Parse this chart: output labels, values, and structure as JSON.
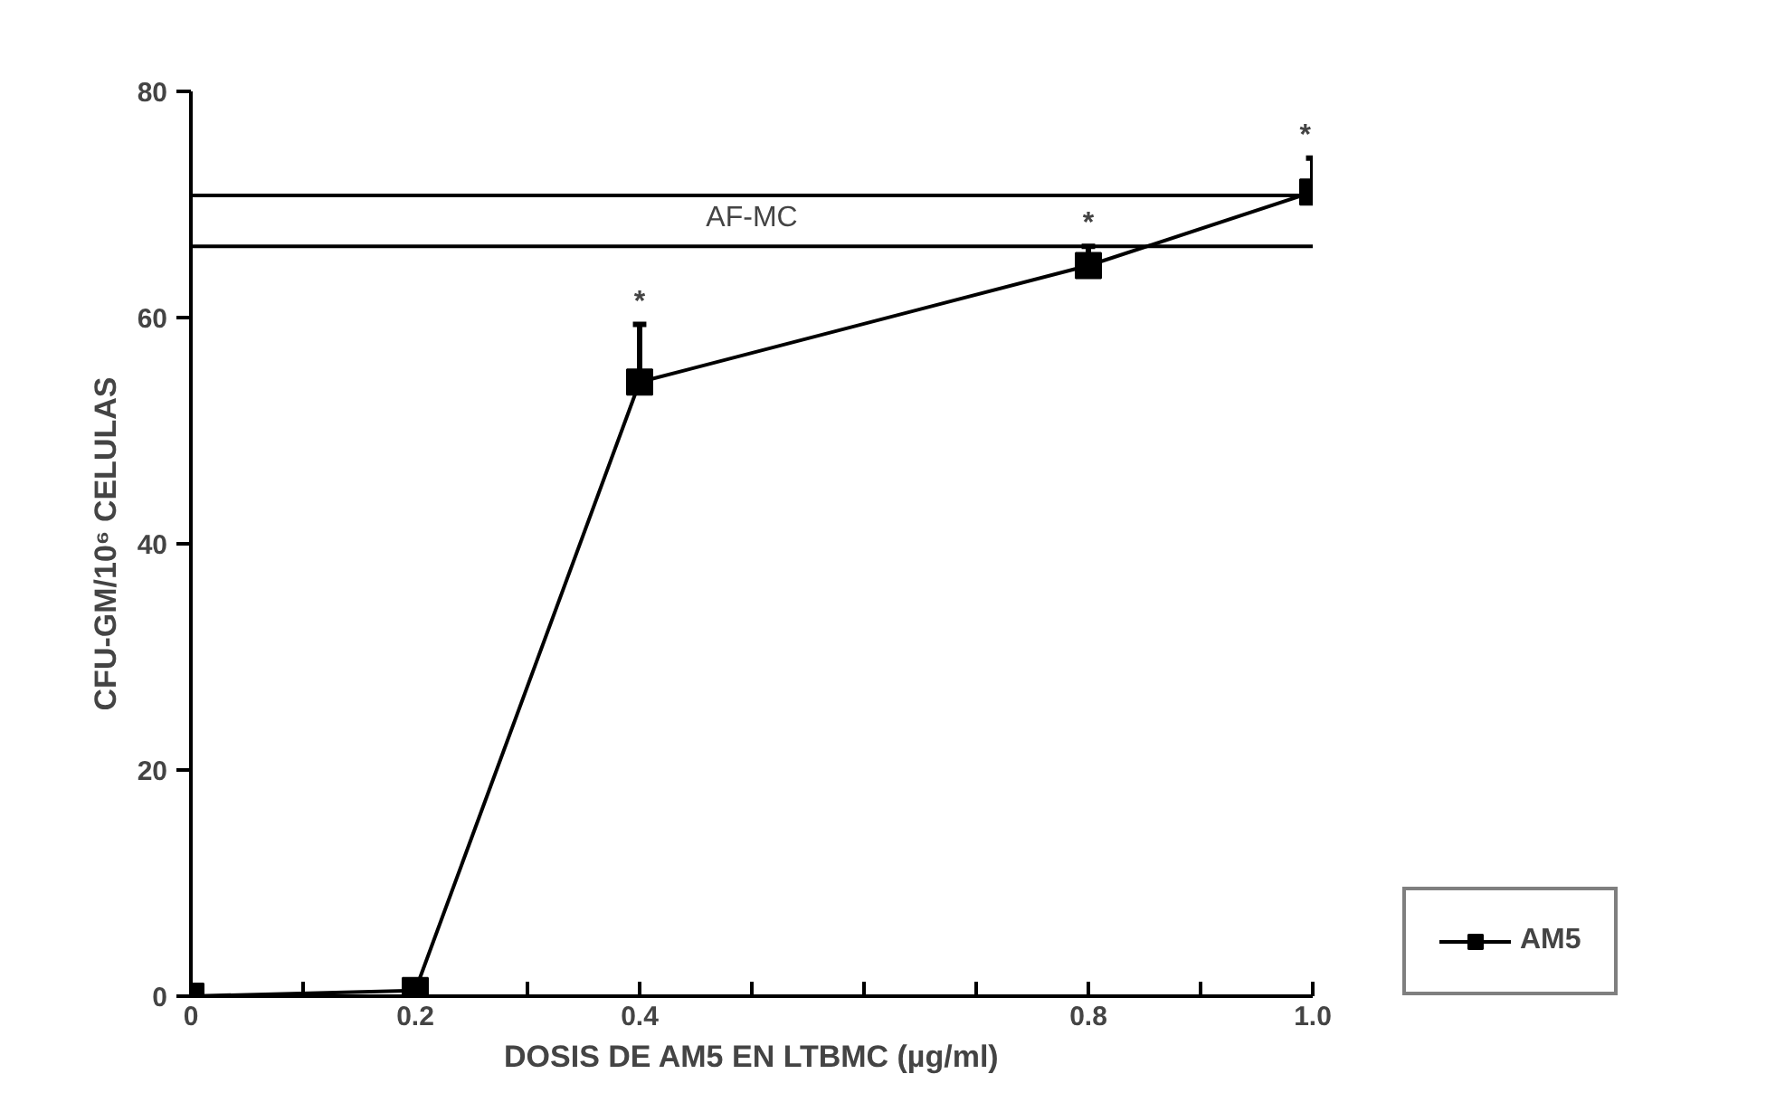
{
  "chart_data": {
    "type": "line",
    "xlabel": "DOSIS DE AM5 EN LTBMC (µg/ml)",
    "ylabel": "CFU-GM/10⁶ CELULAS",
    "x": [
      0,
      0.2,
      0.4,
      0.8,
      1.0
    ],
    "series": [
      {
        "name": "AM5",
        "color": "#000000",
        "values": [
          0,
          0.5,
          54.3,
          64.6,
          71.1
        ],
        "errors": [
          null,
          null,
          [
            54.3,
            59.4
          ],
          [
            64.6,
            66.3
          ],
          [
            71.1,
            74.1
          ]
        ]
      }
    ],
    "xlim": [
      0,
      1.0
    ],
    "ylim": [
      0,
      80
    ],
    "xticks": [
      0,
      {
        "value": 0.1,
        "label": null
      },
      0.2,
      {
        "value": 0.3,
        "label": null
      },
      0.4,
      {
        "value": 0.5,
        "label": null
      },
      {
        "value": 0.6,
        "label": null
      },
      {
        "value": 0.7,
        "label": null
      },
      0.8,
      {
        "value": 0.9,
        "label": null
      },
      {
        "value": 1.0,
        "label": "1.0"
      }
    ],
    "yticks": [
      0,
      20,
      40,
      60,
      80
    ],
    "ref_lines": [
      {
        "axis": "y",
        "value": 70.8,
        "label": "AF-MC"
      },
      {
        "axis": "y",
        "value": 66.3
      }
    ],
    "annotations": [
      {
        "text": "*",
        "x": 0.4,
        "y": 59.4
      },
      {
        "text": "*",
        "x": 0.8,
        "y": 66.3
      },
      {
        "text": "*",
        "x": 1.0,
        "y": 74.1
      }
    ],
    "marker": "square",
    "line_style": "solid",
    "grid": false,
    "legend": "right"
  }
}
